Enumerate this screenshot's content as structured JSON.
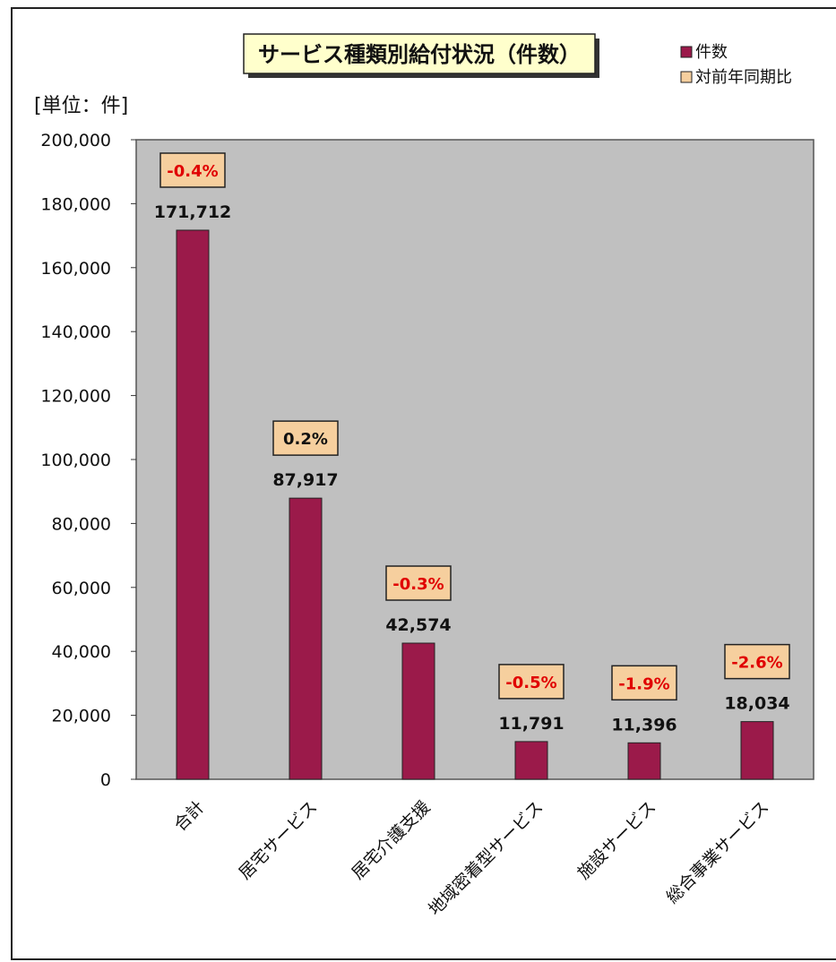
{
  "chart_data": {
    "type": "bar",
    "title": "サービス種類別給付状況（件数）",
    "unit_label": "[単位：件]",
    "categories": [
      "合計",
      "居宅サービス",
      "居宅介護支援",
      "地域密着型サービス",
      "施設サービス",
      "総合事業サービス"
    ],
    "series": [
      {
        "name": "件数",
        "values": [
          171712,
          87917,
          42574,
          11791,
          11396,
          18034
        ],
        "value_labels": [
          "171,712",
          "87,917",
          "42,574",
          "11,791",
          "11,396",
          "18,034"
        ]
      }
    ],
    "yoy_name": "対前年同期比",
    "yoy_labels": [
      "-0.4%",
      "0.2%",
      "-0.3%",
      "-0.5%",
      "-1.9%",
      "-2.6%"
    ],
    "ylim": [
      0,
      200000
    ],
    "ytick_labels": [
      "0",
      "20,000",
      "40,000",
      "60,000",
      "80,000",
      "100,000",
      "120,000",
      "140,000",
      "160,000",
      "180,000",
      "200,000"
    ],
    "grid": false,
    "legend_position": "top-right",
    "colors": {
      "bar": "#9b1a4a",
      "plot_bg": "#c0c0c0",
      "yoy_box": "#f6cf9e",
      "yoy_negative_text": "#e00000",
      "yoy_positive_text": "#111111",
      "title_box": "#ffffcc"
    }
  }
}
